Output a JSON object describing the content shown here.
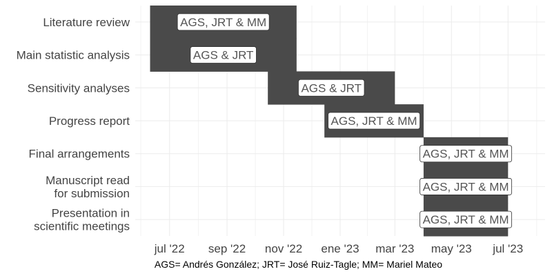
{
  "chart_data": {
    "type": "gantt",
    "title": "",
    "xlabel": "",
    "ylabel": "",
    "grid": true,
    "x_ticks": [
      {
        "date": "2022-07-01",
        "label": "jul '22"
      },
      {
        "date": "2022-09-01",
        "label": "sep '22"
      },
      {
        "date": "2022-11-01",
        "label": "nov '22"
      },
      {
        "date": "2023-01-01",
        "label": "ene '23"
      },
      {
        "date": "2023-03-01",
        "label": "mar '23"
      },
      {
        "date": "2023-05-01",
        "label": "may '23"
      },
      {
        "date": "2023-07-01",
        "label": "jul '23"
      }
    ],
    "xlim": [
      "2022-05-25",
      "2023-08-10"
    ],
    "tasks": [
      {
        "name": "Literature review",
        "lines": [
          "Literature review"
        ],
        "start": "2022-06-10",
        "end": "2022-11-15",
        "label": "AGS, JRT & MM"
      },
      {
        "name": "Main statistic analysis",
        "lines": [
          "Main statistic analysis"
        ],
        "start": "2022-06-10",
        "end": "2022-11-15",
        "label": "AGS & JRT"
      },
      {
        "name": "Sensitivity analyses",
        "lines": [
          "Sensitivity analyses"
        ],
        "start": "2022-10-15",
        "end": "2023-03-01",
        "label": "AGS & JRT"
      },
      {
        "name": "Progress report",
        "lines": [
          "Progress report"
        ],
        "start": "2022-12-15",
        "end": "2023-04-01",
        "label": "AGS, JRT & MM"
      },
      {
        "name": "Final arrangements",
        "lines": [
          "Final arrangements"
        ],
        "start": "2023-04-01",
        "end": "2023-07-01",
        "label": "AGS, JRT & MM"
      },
      {
        "name": "Manuscript read for submission",
        "lines": [
          "Manuscript read",
          "for submission"
        ],
        "start": "2023-04-01",
        "end": "2023-07-01",
        "label": "AGS, JRT & MM"
      },
      {
        "name": "Presentation in scientific meetings",
        "lines": [
          "Presentation in",
          "scientific meetings"
        ],
        "start": "2023-04-01",
        "end": "2023-07-01",
        "label": "AGS, JRT & MM"
      }
    ],
    "colors": {
      "bar": "#4a4a4a",
      "label_text": "#555555",
      "axis_text": "#444444",
      "grid": "#ebebeb"
    },
    "caption": "AGS= Andrés González; JRT= José Ruiz-Tagle; MM= Mariel Mateo"
  }
}
